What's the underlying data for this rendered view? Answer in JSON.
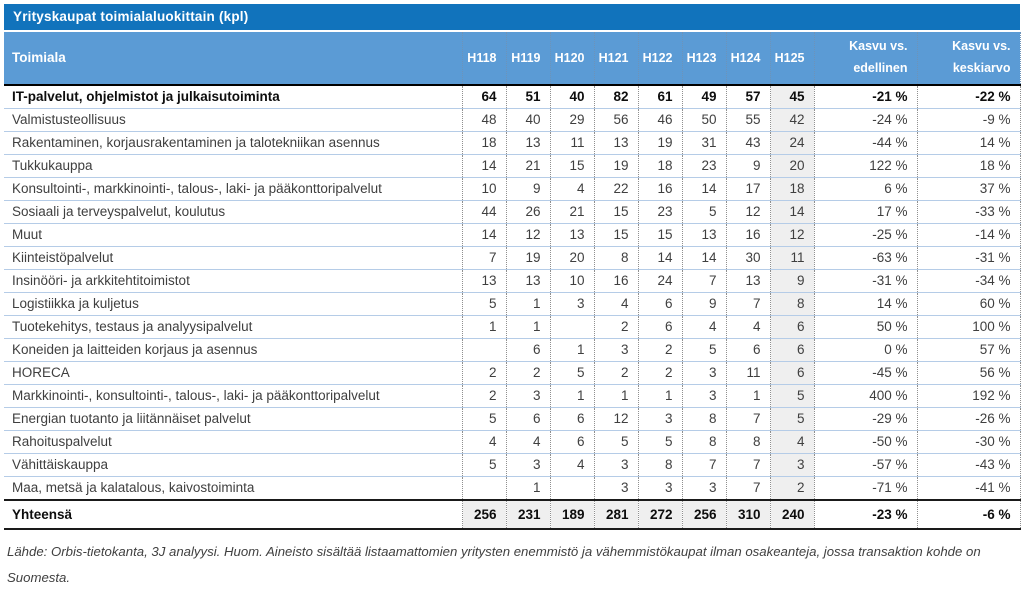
{
  "chart_data": {
    "type": "table",
    "title": "Yrityskaupat toimialaluokittain (kpl)",
    "label_header": "Toimiala",
    "period_headers": [
      "H118",
      "H119",
      "H120",
      "H121",
      "H122",
      "H123",
      "H124",
      "H125"
    ],
    "growth_headers": [
      [
        "Kasvu vs.",
        "edellinen"
      ],
      [
        "Kasvu vs.",
        "keskiarvo"
      ]
    ],
    "highlighted_column": "H125",
    "rows": [
      {
        "label": "IT-palvelut, ohjelmistot ja julkaisutoiminta",
        "values": [
          "64",
          "51",
          "40",
          "82",
          "61",
          "49",
          "57",
          "45"
        ],
        "growth_prev": "-21 %",
        "growth_avg": "-22 %",
        "emphasis": true
      },
      {
        "label": "Valmistusteollisuus",
        "values": [
          "48",
          "40",
          "29",
          "56",
          "46",
          "50",
          "55",
          "42"
        ],
        "growth_prev": "-24 %",
        "growth_avg": "-9 %",
        "emphasis": false
      },
      {
        "label": "Rakentaminen, korjausrakentaminen ja talotekniikan asennus",
        "values": [
          "18",
          "13",
          "11",
          "13",
          "19",
          "31",
          "43",
          "24"
        ],
        "growth_prev": "-44 %",
        "growth_avg": "14 %",
        "emphasis": false
      },
      {
        "label": "Tukkukauppa",
        "values": [
          "14",
          "21",
          "15",
          "19",
          "18",
          "23",
          "9",
          "20"
        ],
        "growth_prev": "122 %",
        "growth_avg": "18 %",
        "emphasis": false
      },
      {
        "label": "Konsultointi-, markkinointi-, talous-, laki- ja pääkonttoripalvelut",
        "values": [
          "10",
          "9",
          "4",
          "22",
          "16",
          "14",
          "17",
          "18"
        ],
        "growth_prev": "6 %",
        "growth_avg": "37 %",
        "emphasis": false
      },
      {
        "label": "Sosiaali ja terveyspalvelut, koulutus",
        "values": [
          "44",
          "26",
          "21",
          "15",
          "23",
          "5",
          "12",
          "14"
        ],
        "growth_prev": "17 %",
        "growth_avg": "-33 %",
        "emphasis": false
      },
      {
        "label": "Muut",
        "values": [
          "14",
          "12",
          "13",
          "15",
          "15",
          "13",
          "16",
          "12"
        ],
        "growth_prev": "-25 %",
        "growth_avg": "-14 %",
        "emphasis": false
      },
      {
        "label": "Kiinteistöpalvelut",
        "values": [
          "7",
          "19",
          "20",
          "8",
          "14",
          "14",
          "30",
          "11"
        ],
        "growth_prev": "-63 %",
        "growth_avg": "-31 %",
        "emphasis": false
      },
      {
        "label": "Insinööri- ja arkkitehtitoimistot",
        "values": [
          "13",
          "13",
          "10",
          "16",
          "24",
          "7",
          "13",
          "9"
        ],
        "growth_prev": "-31 %",
        "growth_avg": "-34 %",
        "emphasis": false
      },
      {
        "label": "Logistiikka ja kuljetus",
        "values": [
          "5",
          "1",
          "3",
          "4",
          "6",
          "9",
          "7",
          "8"
        ],
        "growth_prev": "14 %",
        "growth_avg": "60 %",
        "emphasis": false
      },
      {
        "label": "Tuotekehitys, testaus ja analyysipalvelut",
        "values": [
          "1",
          "1",
          "",
          "2",
          "6",
          "4",
          "4",
          "6"
        ],
        "growth_prev": "50 %",
        "growth_avg": "100 %",
        "emphasis": false
      },
      {
        "label": "Koneiden ja laitteiden korjaus ja asennus",
        "values": [
          "",
          "6",
          "1",
          "3",
          "2",
          "5",
          "6",
          "6"
        ],
        "growth_prev": "0 %",
        "growth_avg": "57 %",
        "emphasis": false
      },
      {
        "label": "HORECA",
        "values": [
          "2",
          "2",
          "5",
          "2",
          "2",
          "3",
          "11",
          "6"
        ],
        "growth_prev": "-45 %",
        "growth_avg": "56 %",
        "emphasis": false
      },
      {
        "label": "Markkinointi-, konsultointi-, talous-, laki- ja pääkonttoripalvelut",
        "values": [
          "2",
          "3",
          "1",
          "1",
          "1",
          "3",
          "1",
          "5"
        ],
        "growth_prev": "400 %",
        "growth_avg": "192 %",
        "emphasis": false
      },
      {
        "label": "Energian tuotanto ja liitännäiset palvelut",
        "values": [
          "5",
          "6",
          "6",
          "12",
          "3",
          "8",
          "7",
          "5"
        ],
        "growth_prev": "-29 %",
        "growth_avg": "-26 %",
        "emphasis": false
      },
      {
        "label": "Rahoituspalvelut",
        "values": [
          "4",
          "4",
          "6",
          "5",
          "5",
          "8",
          "8",
          "4"
        ],
        "growth_prev": "-50 %",
        "growth_avg": "-30 %",
        "emphasis": false
      },
      {
        "label": "Vähittäiskauppa",
        "values": [
          "5",
          "3",
          "4",
          "3",
          "8",
          "7",
          "7",
          "3"
        ],
        "growth_prev": "-57 %",
        "growth_avg": "-43 %",
        "emphasis": false
      },
      {
        "label": "Maa, metsä ja kalatalous, kaivostoiminta",
        "values": [
          "",
          "1",
          "",
          "3",
          "3",
          "3",
          "7",
          "2"
        ],
        "growth_prev": "-71 %",
        "growth_avg": "-41 %",
        "emphasis": false
      }
    ],
    "total_row": {
      "label": "Yhteensä",
      "values": [
        "256",
        "231",
        "189",
        "281",
        "272",
        "256",
        "310",
        "240"
      ],
      "growth_prev": "-23 %",
      "growth_avg": "-6 %"
    }
  },
  "footnote": "Lähde: Orbis-tietokanta, 3J analyysi. Huom. Aineisto sisältää listaamattomien yritysten enemmistö ja vähemmistökaupat ilman osakeanteja, jossa transaktion kohde on Suomesta.",
  "colors": {
    "title_bar_bg": "#1173BC",
    "header_bg": "#5B9BD5",
    "row_separator": "#B5CCE7",
    "column_divider": "#8F8F8F",
    "shaded_column_bg": "#EFEFEF",
    "text": "#3F3F3F",
    "strong_line": "#000000"
  }
}
